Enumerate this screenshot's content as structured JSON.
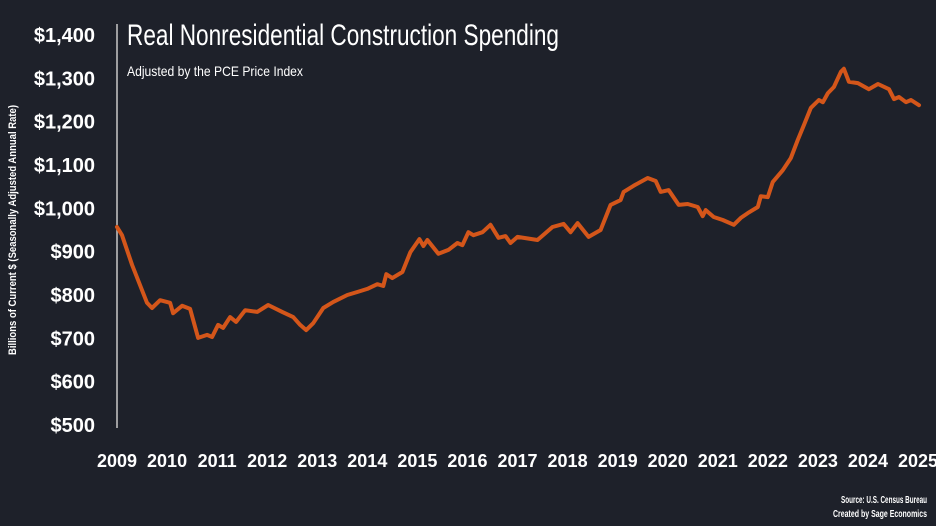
{
  "chart_data": {
    "type": "line",
    "title": "Real Nonresidential Construction Spending",
    "subtitle": "Adjusted by the PCE Price Index",
    "ylabel": "Billions of Current $ (Seasonally Adjusted Annual Rate)",
    "xlabel": "",
    "xlim": [
      2009,
      2025
    ],
    "ylim": [
      500,
      1400
    ],
    "yticks": [
      500,
      600,
      700,
      800,
      900,
      1000,
      1100,
      1200,
      1300,
      1400
    ],
    "ytick_labels": [
      "$500",
      "$600",
      "$700",
      "$800",
      "$900",
      "$1,000",
      "$1,100",
      "$1,200",
      "$1,300",
      "$1,400"
    ],
    "xticks": [
      2009,
      2010,
      2011,
      2012,
      2013,
      2014,
      2015,
      2016,
      2017,
      2018,
      2019,
      2020,
      2021,
      2022,
      2023,
      2024,
      2025
    ],
    "xtick_labels": [
      "2009",
      "2010",
      "2011",
      "2012",
      "2013",
      "2014",
      "2015",
      "2016",
      "2017",
      "2018",
      "2019",
      "2020",
      "2021",
      "2022",
      "2023",
      "2024",
      "2025"
    ],
    "grid": false,
    "legend": "none",
    "source": "Source: U.S. Census Bureau",
    "credit": "Created by Sage Economics",
    "colors": {
      "line": "#d4561a",
      "background": "#1e212a",
      "axis": "#c8c8c8",
      "text": "#ffffff"
    },
    "series": [
      {
        "name": "Real Nonresidential Construction Spending",
        "x": [
          2009.0,
          2009.1,
          2009.3,
          2009.6,
          2009.7,
          2009.86,
          2010.06,
          2010.12,
          2010.3,
          2010.46,
          2010.62,
          2010.8,
          2010.9,
          2011.02,
          2011.12,
          2011.26,
          2011.38,
          2011.56,
          2011.8,
          2012.02,
          2012.3,
          2012.52,
          2012.66,
          2012.78,
          2012.92,
          2013.12,
          2013.32,
          2013.6,
          2013.8,
          2014.0,
          2014.2,
          2014.32,
          2014.38,
          2014.5,
          2014.7,
          2014.86,
          2015.04,
          2015.12,
          2015.2,
          2015.42,
          2015.62,
          2015.8,
          2015.9,
          2016.02,
          2016.12,
          2016.3,
          2016.46,
          2016.62,
          2016.76,
          2016.86,
          2017.0,
          2017.4,
          2017.7,
          2017.92,
          2018.06,
          2018.2,
          2018.42,
          2018.66,
          2018.86,
          2019.06,
          2019.12,
          2019.32,
          2019.6,
          2019.76,
          2019.86,
          2020.02,
          2020.22,
          2020.4,
          2020.6,
          2020.7,
          2020.76,
          2020.92,
          2021.1,
          2021.32,
          2021.46,
          2021.6,
          2021.8,
          2021.86,
          2022.0,
          2022.1,
          2022.3,
          2022.46,
          2022.6,
          2022.72,
          2022.86,
          2023.02,
          2023.1,
          2023.2,
          2023.32,
          2023.46,
          2023.52,
          2023.62,
          2023.8,
          2024.02,
          2024.2,
          2024.42,
          2024.52,
          2024.62,
          2024.76,
          2024.86,
          2025.02
        ],
        "values": [
          957,
          938,
          870,
          782,
          770,
          788,
          782,
          758,
          775,
          768,
          701,
          708,
          703,
          731,
          724,
          749,
          738,
          765,
          761,
          777,
          761,
          749,
          731,
          719,
          735,
          770,
          784,
          800,
          807,
          814,
          825,
          821,
          848,
          839,
          853,
          899,
          929,
          913,
          927,
          895,
          904,
          920,
          915,
          945,
          938,
          945,
          962,
          932,
          936,
          920,
          934,
          927,
          957,
          964,
          945,
          966,
          934,
          950,
          1008,
          1019,
          1038,
          1052,
          1070,
          1063,
          1038,
          1042,
          1008,
          1010,
          1003,
          982,
          996,
          980,
          973,
          962,
          978,
          989,
          1003,
          1028,
          1026,
          1061,
          1088,
          1116,
          1158,
          1192,
          1232,
          1250,
          1245,
          1266,
          1280,
          1315,
          1322,
          1292,
          1289,
          1275,
          1287,
          1275,
          1252,
          1257,
          1245,
          1250,
          1238
        ]
      }
    ]
  }
}
